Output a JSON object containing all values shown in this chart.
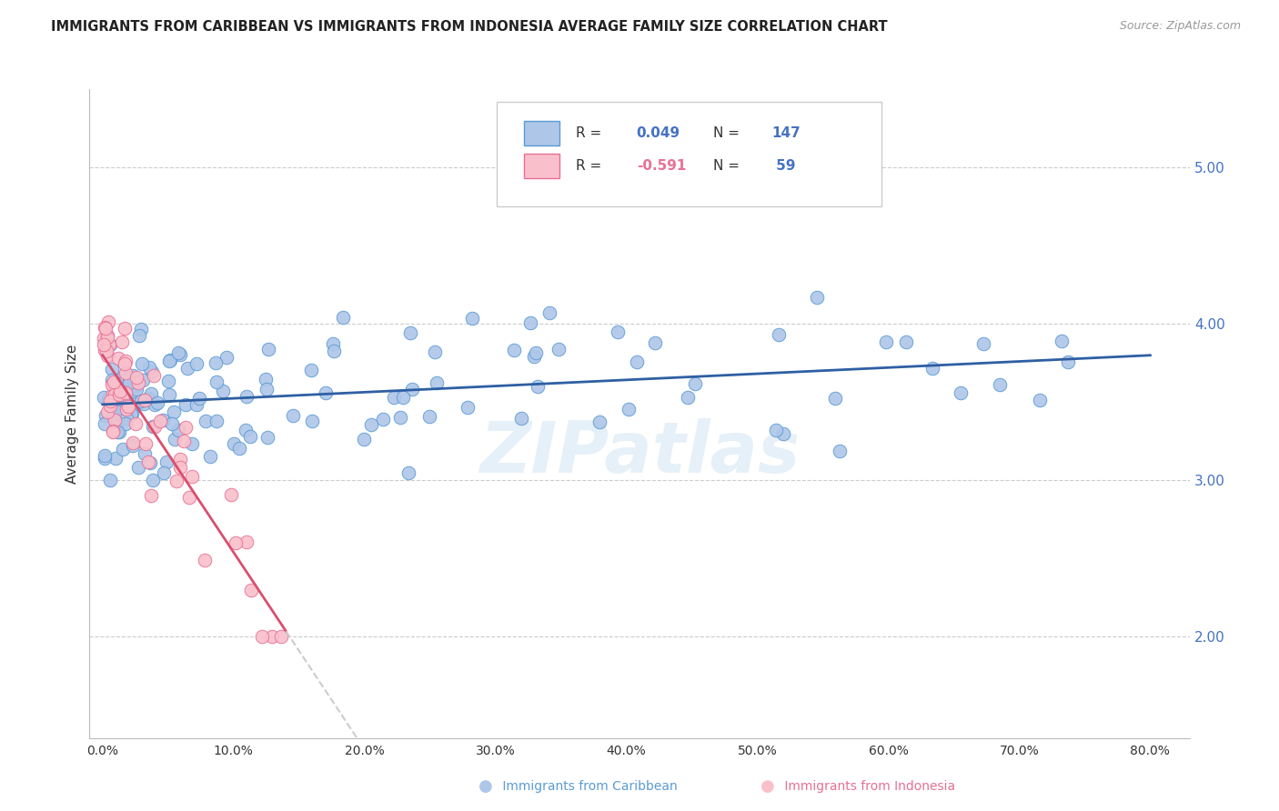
{
  "title": "IMMIGRANTS FROM CARIBBEAN VS IMMIGRANTS FROM INDONESIA AVERAGE FAMILY SIZE CORRELATION CHART",
  "source": "Source: ZipAtlas.com",
  "ylabel": "Average Family Size",
  "right_axis_color": "#4472c4",
  "watermark": "ZIPatlas",
  "caribbean_color": "#aec6e8",
  "caribbean_edge": "#5b9bd5",
  "indonesia_color": "#f9c0cb",
  "indonesia_edge": "#e87094",
  "trendline_caribbean_color": "#2e5fa3",
  "trendline_indonesia_color": "#d94f6e",
  "trendline_indonesia_dashed_color": "#cccccc",
  "background_color": "#ffffff",
  "grid_color": "#cccccc",
  "legend_text_color": "#4472c4",
  "legend_r_color": "#333333",
  "bottom_legend_color_car": "#5b9bd5",
  "bottom_legend_color_ind": "#e87094"
}
